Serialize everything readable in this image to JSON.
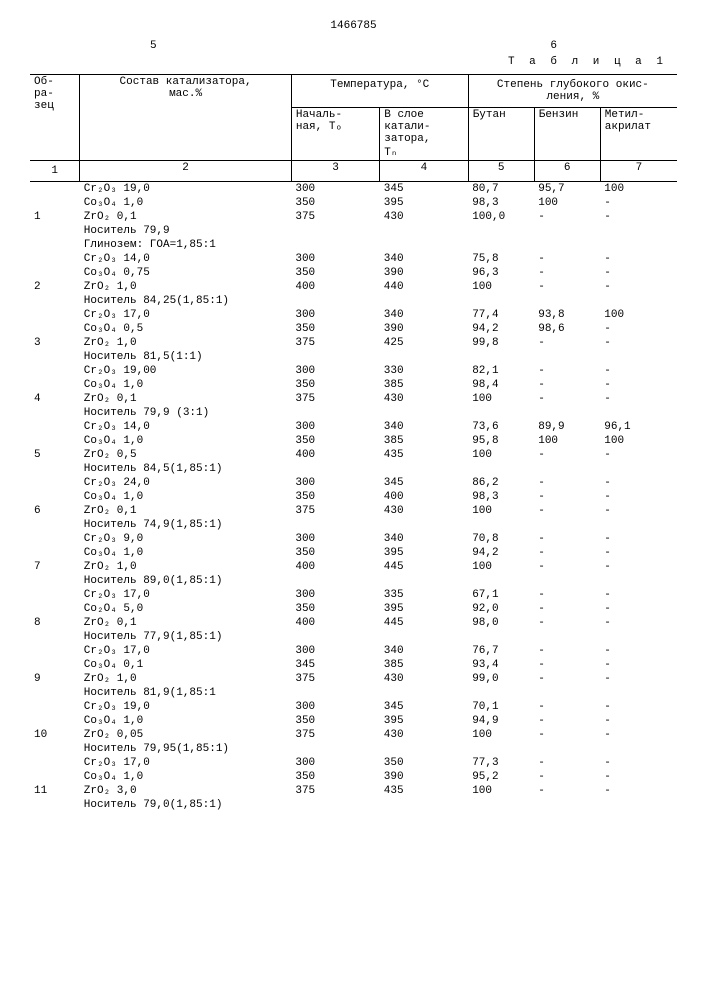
{
  "doc_number": "1466785",
  "col_left": "5",
  "col_right": "6",
  "table_label": "Т а б л и ц а  1",
  "headers": {
    "c1": "Об-\nра-\nзец",
    "c2": "Состав катализатора,\nмас.%",
    "temp_group": "Температура, °С",
    "c3": "Началь-\nная, Тₒ",
    "c4": "В слое\nкатали-\nзатора,\nТₙ",
    "oxid_group": "Степень глубокого окис-\nления, %",
    "c5": "Бутан",
    "c6": "Бензин",
    "c7": "Метил-\nакрилат"
  },
  "colnums": [
    "1",
    "2",
    "3",
    "4",
    "5",
    "6",
    "7"
  ],
  "groups": [
    {
      "id": "1",
      "comp": [
        "Cr₂O₃ 19,0",
        "Co₃O₄ 1,0",
        "ZrO₂  0,1",
        "Носитель 79,9",
        "Глинозем: ГОА=1,85:1"
      ],
      "rows": [
        [
          "300",
          "345",
          "80,7",
          "95,7",
          "100"
        ],
        [
          "350",
          "395",
          "98,3",
          "100",
          "-"
        ],
        [
          "375",
          "430",
          "100,0",
          "-",
          "-"
        ]
      ]
    },
    {
      "id": "2",
      "comp": [
        "Cr₂O₃ 14,0",
        "Co₃O₄ 0,75",
        "ZrO₂  1,0",
        "Носитель 84,25(1,85:1)"
      ],
      "rows": [
        [
          "300",
          "340",
          "75,8",
          "-",
          "-"
        ],
        [
          "350",
          "390",
          "96,3",
          "-",
          "-"
        ],
        [
          "400",
          "440",
          "100",
          "-",
          "-"
        ]
      ]
    },
    {
      "id": "3",
      "comp": [
        "Cr₂O₃ 17,0",
        "Co₃O₄ 0,5",
        "ZrO₂  1,0",
        "Носитель 81,5(1:1)"
      ],
      "rows": [
        [
          "300",
          "340",
          "77,4",
          "93,8",
          "100"
        ],
        [
          "350",
          "390",
          "94,2",
          "98,6",
          "-"
        ],
        [
          "375",
          "425",
          "99,8",
          "-",
          "-"
        ]
      ]
    },
    {
      "id": "4",
      "comp": [
        "Cr₂O₃ 19,00",
        "Co₃O₄ 1,0",
        "ZrO₂  0,1",
        "Носитель 79,9 (3:1)"
      ],
      "rows": [
        [
          "300",
          "330",
          "82,1",
          "-",
          "-"
        ],
        [
          "350",
          "385",
          "98,4",
          "-",
          "-"
        ],
        [
          "375",
          "430",
          "100",
          "-",
          "-"
        ]
      ]
    },
    {
      "id": "5",
      "comp": [
        "Cr₂O₃ 14,0",
        "Co₃O₄ 1,0",
        "ZrO₂  0,5",
        "Носитель 84,5(1,85:1)"
      ],
      "rows": [
        [
          "300",
          "340",
          "73,6",
          "89,9",
          "96,1"
        ],
        [
          "350",
          "385",
          "95,8",
          "100",
          "100"
        ],
        [
          "400",
          "435",
          "100",
          "-",
          "-"
        ]
      ]
    },
    {
      "id": "6",
      "comp": [
        "Cr₂O₃ 24,0",
        "Co₃O₄ 1,0",
        "ZrO₂  0,1",
        "Носитель 74,9(1,85:1)"
      ],
      "rows": [
        [
          "300",
          "345",
          "86,2",
          "-",
          "-"
        ],
        [
          "350",
          "400",
          "98,3",
          "-",
          "-"
        ],
        [
          "375",
          "430",
          "100",
          "-",
          "-"
        ]
      ]
    },
    {
      "id": "7",
      "comp": [
        "Cr₂O₃ 9,0",
        "Co₃O₄ 1,0",
        "ZrO₂  1,0",
        "Носитель 89,0(1,85:1)"
      ],
      "rows": [
        [
          "300",
          "340",
          "70,8",
          "-",
          "-"
        ],
        [
          "350",
          "395",
          "94,2",
          "-",
          "-"
        ],
        [
          "400",
          "445",
          "100",
          "-",
          "-"
        ]
      ]
    },
    {
      "id": "8",
      "comp": [
        "Cr₂O₃ 17,0",
        "Co₂O₄ 5,0",
        "ZrO₂  0,1",
        "Носитель 77,9(1,85:1)"
      ],
      "rows": [
        [
          "300",
          "335",
          "67,1",
          "-",
          "-"
        ],
        [
          "350",
          "395",
          "92,0",
          "-",
          "-"
        ],
        [
          "400",
          "445",
          "98,0",
          "-",
          "-"
        ]
      ]
    },
    {
      "id": "9",
      "comp": [
        "Cr₂O₃ 17,0",
        "Co₃O₄ 0,1",
        "ZrO₂  1,0",
        "Носитель 81,9(1,85:1"
      ],
      "rows": [
        [
          "300",
          "340",
          "76,7",
          "-",
          "-"
        ],
        [
          "345",
          "385",
          "93,4",
          "-",
          "-"
        ],
        [
          "375",
          "430",
          "99,0",
          "-",
          "-"
        ]
      ]
    },
    {
      "id": "10",
      "comp": [
        "Cr₂O₃ 19,0",
        "Co₃O₄ 1,0",
        "ZrO₂  0,05",
        "Носитель 79,95(1,85:1)"
      ],
      "rows": [
        [
          "300",
          "345",
          "70,1",
          "-",
          "-"
        ],
        [
          "350",
          "395",
          "94,9",
          "-",
          "-"
        ],
        [
          "375",
          "430",
          "100",
          "-",
          "-"
        ]
      ]
    },
    {
      "id": "11",
      "comp": [
        "Cr₂O₃ 17,0",
        "Co₃O₄ 1,0",
        "ZrO₂  3,0",
        "Носитель 79,0(1,85:1)"
      ],
      "rows": [
        [
          "300",
          "350",
          "77,3",
          "-",
          "-"
        ],
        [
          "350",
          "390",
          "95,2",
          "-",
          "-"
        ],
        [
          "375",
          "435",
          "100",
          "-",
          "-"
        ]
      ]
    }
  ]
}
